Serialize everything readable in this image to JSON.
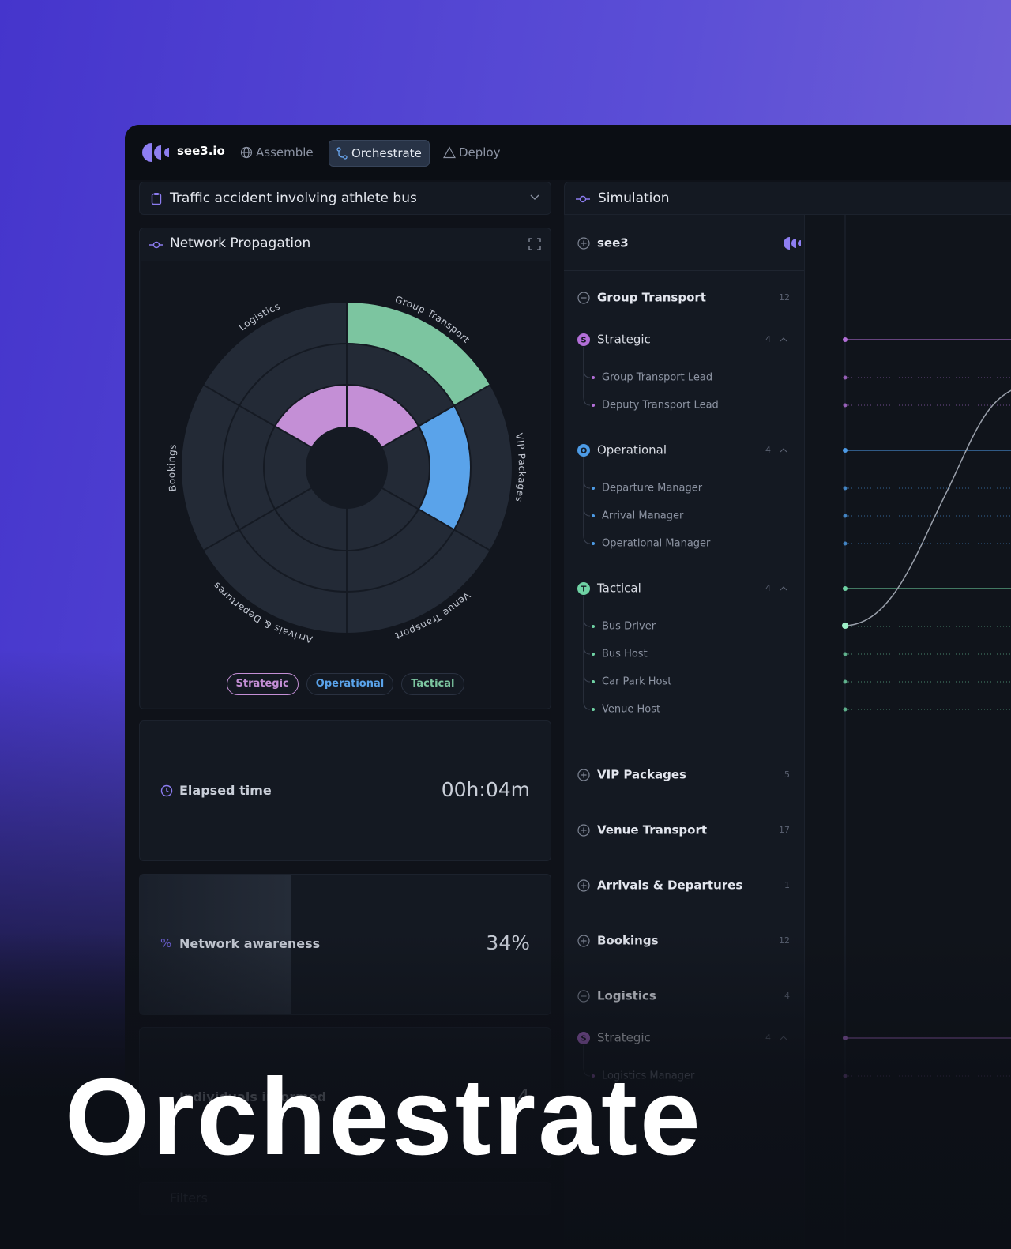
{
  "nav": {
    "brand": "see3.io",
    "items": [
      "Assemble",
      "Orchestrate",
      "Deploy"
    ],
    "active": 1
  },
  "scenario": "Traffic accident involving athlete bus",
  "propagation": {
    "title": "Network Propagation",
    "sectors": [
      "Group Transport",
      "VIP Packages",
      "Venue Transport",
      "Arrivals & Departures",
      "Bookings",
      "Logistics"
    ],
    "legend": [
      {
        "name": "Strategic",
        "color": "#c48fd6"
      },
      {
        "name": "Operational",
        "color": "#5aa3ea"
      },
      {
        "name": "Tactical",
        "color": "#7cc5a0"
      }
    ]
  },
  "stats": [
    {
      "label": "Elapsed time",
      "value": "00h:04m"
    },
    {
      "label": "Network awareness",
      "value": "34%"
    },
    {
      "label": "Individuals informed",
      "value": "4"
    }
  ],
  "filters": "Filters",
  "simulation": {
    "title": "Simulation",
    "root": "see3",
    "groups": [
      {
        "name": "Group Transport",
        "count": 12,
        "levels": [
          {
            "name": "Strategic",
            "badge": "S",
            "count": 4,
            "color": "#b36fd8",
            "members": [
              "Group Transport Lead",
              "Deputy Transport Lead"
            ]
          },
          {
            "name": "Operational",
            "badge": "O",
            "count": 4,
            "color": "#4d9be6",
            "members": [
              "Departure Manager",
              "Arrival Manager",
              "Operational Manager"
            ]
          },
          {
            "name": "Tactical",
            "badge": "T",
            "count": 4,
            "color": "#6fd2a4",
            "members": [
              "Bus Driver",
              "Bus Host",
              "Car Park Host",
              "Venue Host"
            ]
          }
        ]
      },
      {
        "name": "VIP Packages",
        "count": 5
      },
      {
        "name": "Venue Transport",
        "count": 17
      },
      {
        "name": "Arrivals & Departures",
        "count": 1
      },
      {
        "name": "Bookings",
        "count": 12
      },
      {
        "name": "Logistics",
        "count": 4,
        "levels": [
          {
            "name": "Strategic",
            "badge": "S",
            "count": 4,
            "color": "#b36fd8",
            "members": [
              "Logistics Manager"
            ]
          }
        ]
      }
    ]
  },
  "headline": "Orchestrate"
}
